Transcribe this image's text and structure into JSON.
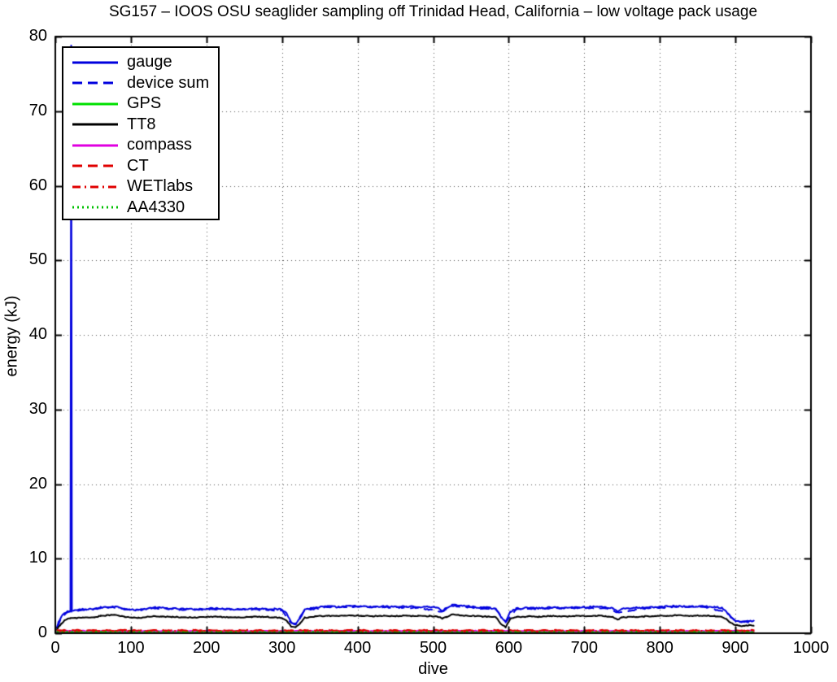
{
  "figure": {
    "background": "#ffffff",
    "axis_color": "#000000",
    "grid_color": "#555555"
  },
  "chart_data": {
    "type": "line",
    "title": "SG157 – IOOS OSU seaglider sampling off Trinidad Head, California – low voltage pack usage",
    "xlabel": "dive",
    "ylabel": "energy (kJ)",
    "xlim": [
      0,
      1000
    ],
    "ylim": [
      0,
      80
    ],
    "x_ticks": [
      0,
      100,
      200,
      300,
      400,
      500,
      600,
      700,
      800,
      900,
      1000
    ],
    "y_ticks": [
      0,
      10,
      20,
      30,
      40,
      50,
      60,
      70,
      80
    ],
    "grid": "dotted",
    "legend_position": "upper-left",
    "series": [
      {
        "name": "gauge",
        "color": "#0000de",
        "linestyle": "solid",
        "noise": 0.1,
        "points": [
          [
            2,
            0.7
          ],
          [
            4,
            1.4
          ],
          [
            8,
            2.2
          ],
          [
            12,
            2.7
          ],
          [
            16,
            2.9
          ],
          [
            20,
            3.0
          ],
          [
            21,
            78.8
          ],
          [
            22,
            3.0
          ],
          [
            28,
            3.1
          ],
          [
            36,
            3.2
          ],
          [
            44,
            3.2
          ],
          [
            52,
            3.3
          ],
          [
            60,
            3.45
          ],
          [
            68,
            3.5
          ],
          [
            76,
            3.6
          ],
          [
            84,
            3.5
          ],
          [
            92,
            3.3
          ],
          [
            100,
            3.15
          ],
          [
            110,
            3.1
          ],
          [
            120,
            3.25
          ],
          [
            130,
            3.45
          ],
          [
            140,
            3.4
          ],
          [
            155,
            3.3
          ],
          [
            170,
            3.25
          ],
          [
            185,
            3.2
          ],
          [
            200,
            3.3
          ],
          [
            215,
            3.35
          ],
          [
            230,
            3.25
          ],
          [
            245,
            3.2
          ],
          [
            260,
            3.3
          ],
          [
            275,
            3.3
          ],
          [
            290,
            3.25
          ],
          [
            300,
            3.15
          ],
          [
            306,
            2.7
          ],
          [
            312,
            1.5
          ],
          [
            318,
            1.3
          ],
          [
            324,
            2.0
          ],
          [
            330,
            3.2
          ],
          [
            345,
            3.45
          ],
          [
            360,
            3.6
          ],
          [
            375,
            3.5
          ],
          [
            390,
            3.65
          ],
          [
            405,
            3.6
          ],
          [
            420,
            3.5
          ],
          [
            435,
            3.6
          ],
          [
            450,
            3.55
          ],
          [
            465,
            3.6
          ],
          [
            480,
            3.5
          ],
          [
            495,
            3.55
          ],
          [
            505,
            3.45
          ],
          [
            512,
            3.0
          ],
          [
            518,
            3.4
          ],
          [
            525,
            3.8
          ],
          [
            535,
            3.7
          ],
          [
            545,
            3.65
          ],
          [
            555,
            3.5
          ],
          [
            565,
            3.45
          ],
          [
            575,
            3.4
          ],
          [
            583,
            3.3
          ],
          [
            590,
            2.1
          ],
          [
            596,
            1.6
          ],
          [
            602,
            2.9
          ],
          [
            610,
            3.3
          ],
          [
            625,
            3.4
          ],
          [
            640,
            3.35
          ],
          [
            655,
            3.45
          ],
          [
            670,
            3.4
          ],
          [
            685,
            3.45
          ],
          [
            700,
            3.5
          ],
          [
            715,
            3.55
          ],
          [
            728,
            3.5
          ],
          [
            738,
            3.35
          ],
          [
            744,
            2.9
          ],
          [
            750,
            3.3
          ],
          [
            765,
            3.4
          ],
          [
            780,
            3.4
          ],
          [
            795,
            3.5
          ],
          [
            810,
            3.6
          ],
          [
            822,
            3.65
          ],
          [
            835,
            3.55
          ],
          [
            848,
            3.6
          ],
          [
            860,
            3.6
          ],
          [
            872,
            3.5
          ],
          [
            882,
            3.4
          ],
          [
            888,
            2.9
          ],
          [
            894,
            2.1
          ],
          [
            900,
            1.7
          ],
          [
            906,
            1.5
          ],
          [
            912,
            1.5
          ],
          [
            918,
            1.6
          ],
          [
            925,
            1.6
          ]
        ]
      },
      {
        "name": "device sum",
        "color": "#0000de",
        "linestyle": "dashed",
        "noise": 0.08,
        "points": [
          [
            2,
            0.6
          ],
          [
            8,
            2.1
          ],
          [
            16,
            2.8
          ],
          [
            30,
            3.0
          ],
          [
            60,
            3.35
          ],
          [
            76,
            3.5
          ],
          [
            100,
            3.05
          ],
          [
            130,
            3.35
          ],
          [
            170,
            3.15
          ],
          [
            215,
            3.25
          ],
          [
            260,
            3.2
          ],
          [
            300,
            3.05
          ],
          [
            312,
            1.4
          ],
          [
            318,
            1.2
          ],
          [
            330,
            3.1
          ],
          [
            360,
            3.5
          ],
          [
            390,
            3.55
          ],
          [
            435,
            3.5
          ],
          [
            480,
            3.4
          ],
          [
            512,
            2.9
          ],
          [
            525,
            3.7
          ],
          [
            555,
            3.4
          ],
          [
            583,
            3.2
          ],
          [
            596,
            1.5
          ],
          [
            610,
            3.2
          ],
          [
            655,
            3.35
          ],
          [
            700,
            3.4
          ],
          [
            728,
            3.4
          ],
          [
            744,
            2.8
          ],
          [
            780,
            3.3
          ],
          [
            822,
            3.55
          ],
          [
            860,
            3.5
          ],
          [
            888,
            2.8
          ],
          [
            900,
            1.6
          ],
          [
            925,
            1.5
          ]
        ]
      },
      {
        "name": "GPS",
        "color": "#00e000",
        "linestyle": "solid",
        "noise": 0.04,
        "points": [
          [
            2,
            0.12
          ],
          [
            925,
            0.12
          ]
        ]
      },
      {
        "name": "TT8",
        "color": "#000000",
        "linestyle": "solid",
        "noise": 0.07,
        "points": [
          [
            2,
            0.4
          ],
          [
            4,
            0.8
          ],
          [
            8,
            1.3
          ],
          [
            12,
            1.7
          ],
          [
            16,
            1.9
          ],
          [
            20,
            2.0
          ],
          [
            28,
            2.05
          ],
          [
            36,
            2.1
          ],
          [
            44,
            2.1
          ],
          [
            52,
            2.15
          ],
          [
            60,
            2.3
          ],
          [
            68,
            2.4
          ],
          [
            76,
            2.45
          ],
          [
            84,
            2.35
          ],
          [
            92,
            2.2
          ],
          [
            100,
            2.1
          ],
          [
            110,
            2.05
          ],
          [
            120,
            2.15
          ],
          [
            130,
            2.3
          ],
          [
            140,
            2.25
          ],
          [
            155,
            2.2
          ],
          [
            170,
            2.15
          ],
          [
            185,
            2.1
          ],
          [
            200,
            2.2
          ],
          [
            215,
            2.2
          ],
          [
            230,
            2.15
          ],
          [
            245,
            2.1
          ],
          [
            260,
            2.2
          ],
          [
            275,
            2.2
          ],
          [
            290,
            2.15
          ],
          [
            300,
            2.05
          ],
          [
            306,
            1.7
          ],
          [
            312,
            0.9
          ],
          [
            318,
            0.8
          ],
          [
            324,
            1.3
          ],
          [
            330,
            2.1
          ],
          [
            345,
            2.25
          ],
          [
            360,
            2.35
          ],
          [
            375,
            2.3
          ],
          [
            390,
            2.4
          ],
          [
            405,
            2.35
          ],
          [
            420,
            2.3
          ],
          [
            435,
            2.35
          ],
          [
            450,
            2.3
          ],
          [
            465,
            2.35
          ],
          [
            480,
            2.3
          ],
          [
            495,
            2.3
          ],
          [
            505,
            2.25
          ],
          [
            512,
            2.0
          ],
          [
            518,
            2.2
          ],
          [
            525,
            2.5
          ],
          [
            535,
            2.4
          ],
          [
            545,
            2.35
          ],
          [
            555,
            2.3
          ],
          [
            565,
            2.25
          ],
          [
            575,
            2.2
          ],
          [
            583,
            2.15
          ],
          [
            590,
            1.2
          ],
          [
            596,
            0.8
          ],
          [
            602,
            1.9
          ],
          [
            610,
            2.15
          ],
          [
            625,
            2.25
          ],
          [
            640,
            2.2
          ],
          [
            655,
            2.3
          ],
          [
            670,
            2.25
          ],
          [
            685,
            2.3
          ],
          [
            700,
            2.3
          ],
          [
            715,
            2.35
          ],
          [
            728,
            2.3
          ],
          [
            738,
            2.2
          ],
          [
            744,
            1.85
          ],
          [
            750,
            2.15
          ],
          [
            765,
            2.2
          ],
          [
            780,
            2.25
          ],
          [
            795,
            2.3
          ],
          [
            810,
            2.35
          ],
          [
            822,
            2.4
          ],
          [
            835,
            2.35
          ],
          [
            848,
            2.35
          ],
          [
            860,
            2.35
          ],
          [
            872,
            2.3
          ],
          [
            882,
            2.2
          ],
          [
            888,
            1.9
          ],
          [
            894,
            1.4
          ],
          [
            900,
            1.1
          ],
          [
            906,
            1.0
          ],
          [
            912,
            1.0
          ],
          [
            918,
            1.05
          ],
          [
            925,
            1.05
          ]
        ]
      },
      {
        "name": "compass",
        "color": "#e000e0",
        "linestyle": "solid",
        "noise": 0.05,
        "points": [
          [
            2,
            0.3
          ],
          [
            925,
            0.3
          ]
        ]
      },
      {
        "name": "CT",
        "color": "#e00000",
        "linestyle": "dashed",
        "noise": 0.06,
        "points": [
          [
            2,
            0.4
          ],
          [
            925,
            0.4
          ]
        ]
      },
      {
        "name": "WETlabs",
        "color": "#e00000",
        "linestyle": "dashdot",
        "noise": 0.05,
        "points": [
          [
            2,
            0.3
          ],
          [
            925,
            0.3
          ]
        ]
      },
      {
        "name": "AA4330",
        "color": "#00c000",
        "linestyle": "dotted",
        "noise": 0.04,
        "points": [
          [
            2,
            0.18
          ],
          [
            925,
            0.18
          ]
        ]
      }
    ]
  }
}
